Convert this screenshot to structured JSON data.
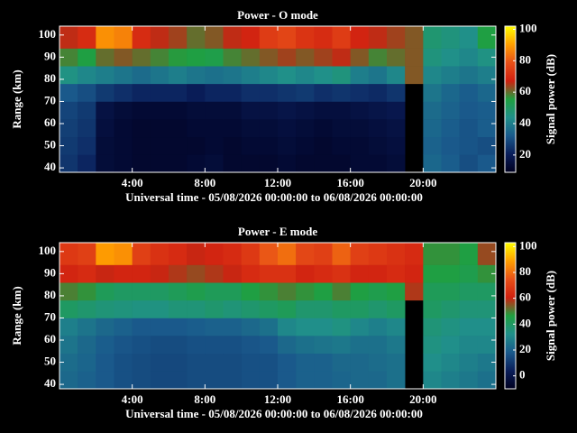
{
  "chart_data": [
    {
      "type": "heatmap",
      "title": "Power - O mode",
      "xlabel": "Universal time - 05/08/2026 00:00:00 to 06/08/2026 00:00:00",
      "ylabel": "Range (km)",
      "colorbar_label": "Signal power (dB)",
      "xlim": [
        0,
        24
      ],
      "ylim": [
        38,
        104
      ],
      "xticks": [
        {
          "value": 4,
          "label": "4:00"
        },
        {
          "value": 8,
          "label": "8:00"
        },
        {
          "value": 12,
          "label": "12:00"
        },
        {
          "value": 16,
          "label": "16:00"
        },
        {
          "value": 20,
          "label": "20:00"
        }
      ],
      "yticks": [
        40,
        50,
        60,
        70,
        80,
        90,
        100
      ],
      "x_bins": [
        0,
        1,
        2,
        3,
        4,
        5,
        6,
        7,
        8,
        9,
        10,
        11,
        12,
        13,
        14,
        15,
        16,
        17,
        18,
        19,
        20,
        21,
        22,
        23,
        24
      ],
      "y_bins": [
        38,
        46,
        54,
        62,
        70,
        78,
        86,
        94,
        104
      ],
      "clim": [
        9,
        102
      ],
      "cticks": [
        20,
        40,
        60,
        80,
        100
      ],
      "colormap": [
        "#000020",
        "#0a1e5a",
        "#1a5a8c",
        "#20908a",
        "#1fa040",
        "#d02010",
        "#e85018",
        "#ffa000",
        "#ffff00"
      ],
      "z": [
        [
          25,
          22,
          14,
          13,
          12,
          12,
          12,
          13,
          14,
          12,
          12,
          12,
          13,
          12,
          12,
          12,
          13,
          13,
          14,
          null,
          35,
          33,
          30,
          32
        ],
        [
          26,
          24,
          14,
          13,
          12,
          12,
          12,
          12,
          13,
          12,
          13,
          13,
          14,
          13,
          12,
          13,
          13,
          14,
          15,
          null,
          34,
          32,
          31,
          30
        ],
        [
          27,
          25,
          15,
          13,
          12,
          12,
          12,
          13,
          13,
          13,
          14,
          14,
          15,
          14,
          13,
          14,
          14,
          15,
          16,
          null,
          35,
          33,
          31,
          33
        ],
        [
          28,
          26,
          16,
          14,
          13,
          13,
          13,
          14,
          14,
          14,
          16,
          16,
          17,
          16,
          15,
          15,
          16,
          17,
          18,
          null,
          36,
          34,
          32,
          33
        ],
        [
          32,
          30,
          26,
          24,
          22,
          22,
          22,
          20,
          22,
          22,
          24,
          24,
          25,
          26,
          24,
          25,
          24,
          23,
          25,
          null,
          38,
          35,
          33,
          35
        ],
        [
          45,
          42,
          40,
          38,
          36,
          38,
          40,
          38,
          37,
          38,
          40,
          42,
          44,
          42,
          44,
          46,
          40,
          38,
          42,
          62,
          42,
          40,
          38,
          40
        ],
        [
          58,
          55,
          60,
          62,
          60,
          58,
          56,
          55,
          54,
          58,
          60,
          62,
          64,
          62,
          64,
          66,
          62,
          58,
          60,
          62,
          46,
          44,
          42,
          45
        ],
        [
          66,
          70,
          88,
          86,
          70,
          66,
          64,
          60,
          62,
          66,
          68,
          74,
          76,
          72,
          70,
          74,
          68,
          66,
          64,
          62,
          48,
          46,
          44,
          55
        ]
      ]
    },
    {
      "type": "heatmap",
      "title": "Power - E mode",
      "xlabel": "Universal time - 05/08/2026 00:00:00 to 06/08/2026 00:00:00",
      "ylabel": "Range (km)",
      "colorbar_label": "Signal power (dB)",
      "xlim": [
        0,
        24
      ],
      "ylim": [
        38,
        104
      ],
      "xticks": [
        {
          "value": 4,
          "label": "4:00"
        },
        {
          "value": 8,
          "label": "8:00"
        },
        {
          "value": 12,
          "label": "12:00"
        },
        {
          "value": 16,
          "label": "16:00"
        },
        {
          "value": 20,
          "label": "20:00"
        }
      ],
      "yticks": [
        40,
        50,
        60,
        70,
        80,
        90,
        100
      ],
      "x_bins": [
        0,
        1,
        2,
        3,
        4,
        5,
        6,
        7,
        8,
        9,
        10,
        11,
        12,
        13,
        14,
        15,
        16,
        17,
        18,
        19,
        20,
        21,
        22,
        23,
        24
      ],
      "y_bins": [
        38,
        46,
        54,
        62,
        70,
        78,
        86,
        94,
        104
      ],
      "clim": [
        -10,
        103
      ],
      "cticks": [
        0,
        20,
        40,
        60,
        80,
        100
      ],
      "colormap": [
        "#000020",
        "#0a1e5a",
        "#1a5a8c",
        "#20908a",
        "#1fa040",
        "#d02010",
        "#e85018",
        "#ffa000",
        "#ffff00"
      ],
      "z": [
        [
          22,
          20,
          18,
          16,
          15,
          14,
          14,
          15,
          15,
          15,
          16,
          16,
          18,
          20,
          20,
          21,
          22,
          22,
          24,
          null,
          30,
          28,
          26,
          24
        ],
        [
          23,
          21,
          18,
          16,
          15,
          14,
          14,
          15,
          15,
          15,
          16,
          16,
          18,
          20,
          20,
          22,
          22,
          23,
          24,
          null,
          32,
          30,
          28,
          26
        ],
        [
          25,
          22,
          19,
          17,
          16,
          15,
          15,
          16,
          16,
          16,
          17,
          18,
          22,
          24,
          25,
          26,
          24,
          24,
          26,
          null,
          34,
          32,
          30,
          30
        ],
        [
          28,
          25,
          22,
          20,
          18,
          18,
          18,
          19,
          20,
          20,
          22,
          24,
          30,
          32,
          32,
          34,
          30,
          28,
          30,
          null,
          36,
          34,
          32,
          32
        ],
        [
          40,
          38,
          36,
          35,
          34,
          34,
          36,
          36,
          38,
          36,
          38,
          40,
          42,
          38,
          38,
          40,
          40,
          38,
          40,
          null,
          40,
          38,
          36,
          36
        ],
        [
          50,
          48,
          42,
          40,
          40,
          40,
          42,
          44,
          42,
          42,
          46,
          48,
          50,
          48,
          46,
          50,
          46,
          44,
          46,
          58,
          42,
          42,
          40,
          40
        ],
        [
          62,
          64,
          60,
          62,
          62,
          60,
          58,
          56,
          58,
          60,
          64,
          66,
          66,
          62,
          64,
          66,
          62,
          62,
          64,
          62,
          46,
          46,
          44,
          48
        ],
        [
          68,
          70,
          88,
          86,
          70,
          66,
          64,
          60,
          62,
          64,
          68,
          76,
          80,
          72,
          70,
          78,
          70,
          68,
          66,
          64,
          48,
          48,
          46,
          56
        ]
      ]
    }
  ]
}
